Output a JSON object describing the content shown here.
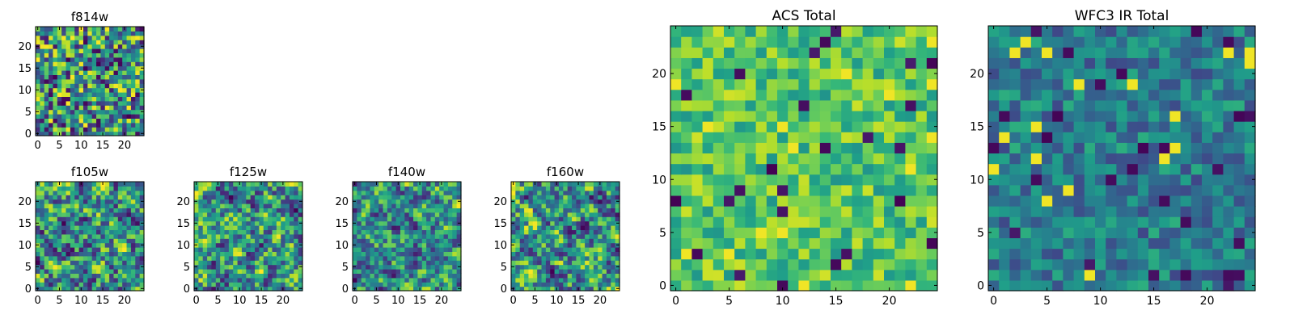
{
  "chart_data": [
    {
      "type": "heatmap",
      "title": "f814w",
      "grid_size": 25,
      "xticks": [
        0,
        5,
        10,
        15,
        20
      ],
      "yticks": [
        0,
        5,
        10,
        15,
        20
      ],
      "value_range": [
        0,
        1
      ],
      "colormap": "viridis",
      "seed": 11,
      "smooth": 0
    },
    {
      "type": "heatmap",
      "title": "f105w",
      "grid_size": 25,
      "xticks": [
        0,
        5,
        10,
        15,
        20
      ],
      "yticks": [
        0,
        5,
        10,
        15,
        20
      ],
      "value_range": [
        0,
        1
      ],
      "colormap": "viridis",
      "seed": 23,
      "smooth": 1
    },
    {
      "type": "heatmap",
      "title": "f125w",
      "grid_size": 25,
      "xticks": [
        0,
        5,
        10,
        15,
        20
      ],
      "yticks": [
        0,
        5,
        10,
        15,
        20
      ],
      "value_range": [
        0,
        1
      ],
      "colormap": "viridis",
      "seed": 37,
      "smooth": 1
    },
    {
      "type": "heatmap",
      "title": "f140w",
      "grid_size": 25,
      "xticks": [
        0,
        5,
        10,
        15,
        20
      ],
      "yticks": [
        0,
        5,
        10,
        15,
        20
      ],
      "value_range": [
        0,
        1
      ],
      "colormap": "viridis",
      "seed": 41,
      "smooth": 1
    },
    {
      "type": "heatmap",
      "title": "f160w",
      "grid_size": 25,
      "xticks": [
        0,
        5,
        10,
        15,
        20
      ],
      "yticks": [
        0,
        5,
        10,
        15,
        20
      ],
      "value_range": [
        0,
        1
      ],
      "colormap": "viridis",
      "seed": 59,
      "smooth": 1
    },
    {
      "type": "heatmap",
      "title": "ACS Total",
      "grid_size": 25,
      "xticks": [
        0,
        5,
        10,
        15,
        20
      ],
      "yticks": [
        0,
        5,
        10,
        15,
        20
      ],
      "value_range": [
        0,
        1
      ],
      "colormap": "viridis",
      "seed": 71,
      "smooth": 0,
      "bias": 0.72
    },
    {
      "type": "heatmap",
      "title": "WFC3 IR Total",
      "grid_size": 25,
      "xticks": [
        0,
        5,
        10,
        15,
        20
      ],
      "yticks": [
        0,
        5,
        10,
        15,
        20
      ],
      "value_range": [
        0,
        1
      ],
      "colormap": "viridis",
      "seed": 83,
      "smooth": 0,
      "bias": 0.42
    }
  ],
  "colors": {
    "background": "#ffffff",
    "axes": "#000000"
  }
}
